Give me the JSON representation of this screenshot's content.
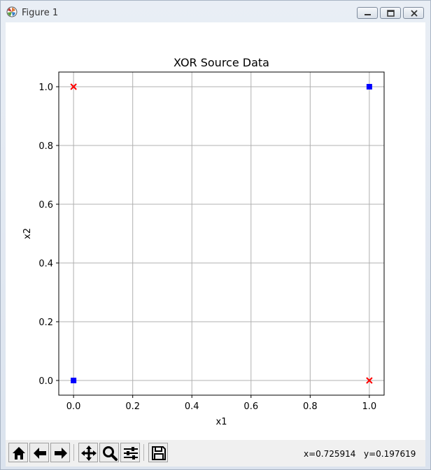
{
  "window": {
    "title": "Figure 1"
  },
  "toolbar": {
    "buttons": [
      {
        "name": "home-icon"
      },
      {
        "name": "back-arrow-icon"
      },
      {
        "name": "forward-arrow-icon"
      },
      {
        "name": "pan-icon"
      },
      {
        "name": "zoom-icon"
      },
      {
        "name": "configure-subplots-icon"
      },
      {
        "name": "save-icon"
      }
    ],
    "coord_x": "x=0.725914",
    "coord_y": "y=0.197619"
  },
  "chart_data": {
    "type": "scatter",
    "title": "XOR Source Data",
    "xlabel": "x1",
    "ylabel": "x2",
    "xlim": [
      -0.05,
      1.05
    ],
    "ylim": [
      -0.05,
      1.05
    ],
    "xticks": [
      0.0,
      0.2,
      0.4,
      0.6,
      0.8,
      1.0
    ],
    "xtick_labels": [
      "0.0",
      "0.2",
      "0.4",
      "0.6",
      "0.8",
      "1.0"
    ],
    "yticks": [
      0.0,
      0.2,
      0.4,
      0.6,
      0.8,
      1.0
    ],
    "ytick_labels": [
      "0.0",
      "0.2",
      "0.4",
      "0.6",
      "0.8",
      "1.0"
    ],
    "grid": true,
    "series": [
      {
        "marker": "square",
        "color": "#0000ff",
        "points": [
          [
            0,
            0
          ],
          [
            1,
            1
          ]
        ]
      },
      {
        "marker": "x",
        "color": "#ff0000",
        "points": [
          [
            0,
            1
          ],
          [
            1,
            0
          ]
        ]
      }
    ]
  }
}
